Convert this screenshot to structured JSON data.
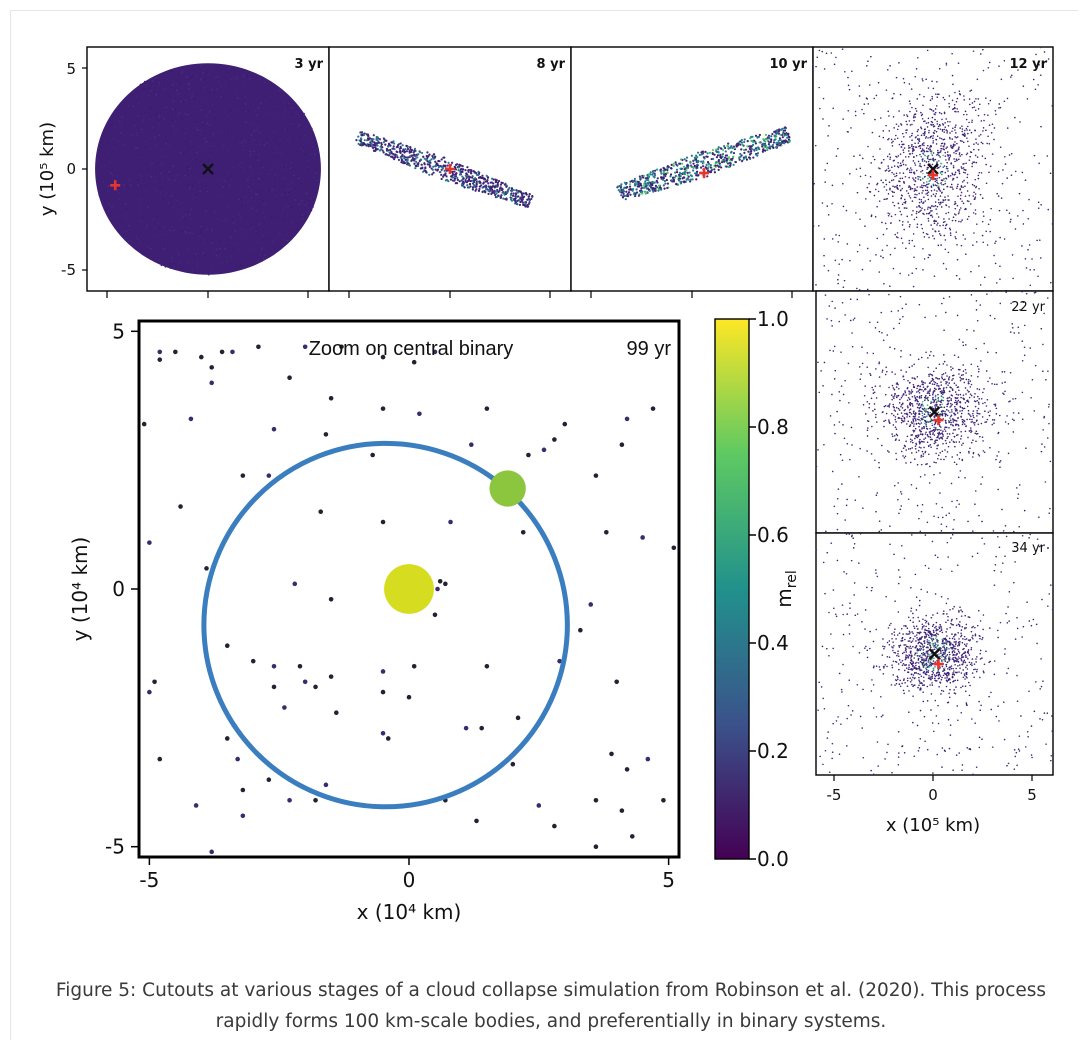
{
  "chart_data": [
    {
      "type": "scatter",
      "panel": "3 yr",
      "time_label": "3 yr",
      "ylabel": "y (10⁵ km)",
      "xlim": [
        -6,
        6
      ],
      "ylim": [
        -6,
        6
      ],
      "yticks": [
        5,
        0,
        -5
      ],
      "yticklabels": [
        "5",
        "0",
        "-5"
      ],
      "shape": "ellipse",
      "cloud": {
        "cx": 0,
        "cy": 0,
        "rx": 5.6,
        "ry": 5.2
      },
      "markers": [
        {
          "kind": "center",
          "symbol": "x",
          "x": 0,
          "y": 0,
          "color": "#111111"
        },
        {
          "kind": "second",
          "symbol": "+",
          "x": -4.6,
          "y": -0.8,
          "color": "#e8352a"
        }
      ]
    },
    {
      "type": "scatter",
      "panel": "8 yr",
      "time_label": "8 yr",
      "xlim": [
        -6,
        6
      ],
      "ylim": [
        -6,
        6
      ],
      "shape": "filament",
      "cloud": {
        "x1": -4.6,
        "y1": 1.6,
        "x2": 4.0,
        "y2": -1.6,
        "width": 0.55
      },
      "markers": [
        {
          "kind": "second",
          "symbol": "+",
          "x": 0,
          "y": 0,
          "color": "#e8352a"
        }
      ]
    },
    {
      "type": "scatter",
      "panel": "10 yr",
      "time_label": "10 yr",
      "xlim": [
        -6,
        6
      ],
      "ylim": [
        -6,
        6
      ],
      "shape": "filament",
      "cloud": {
        "x1": -3.6,
        "y1": -1.2,
        "x2": 4.8,
        "y2": 1.7,
        "width": 0.65
      },
      "markers": [
        {
          "kind": "second",
          "symbol": "+",
          "x": 0.6,
          "y": -0.2,
          "color": "#e8352a"
        }
      ]
    },
    {
      "type": "scatter",
      "panel": "12 yr",
      "time_label": "12 yr",
      "xlim": [
        -6,
        6
      ],
      "ylim": [
        -6,
        6
      ],
      "shape": "diffuse",
      "cloud": {
        "cx": 0,
        "cy": 0,
        "sx": 2.8,
        "sy": 3.3
      },
      "markers": [
        {
          "kind": "center",
          "symbol": "x",
          "x": 0,
          "y": 0,
          "color": "#111111"
        },
        {
          "kind": "second",
          "symbol": "+",
          "x": 0,
          "y": -0.3,
          "color": "#e8352a"
        }
      ]
    },
    {
      "type": "scatter",
      "panel": "22 yr",
      "time_label": "22 yr",
      "xlim": [
        -6,
        6
      ],
      "ylim": [
        -6,
        6
      ],
      "shape": "diffuse",
      "cloud": {
        "cx": 0,
        "cy": 0,
        "sx": 2.6,
        "sy": 2.1
      },
      "markers": [
        {
          "kind": "center",
          "symbol": "x",
          "x": 0,
          "y": 0,
          "color": "#111111"
        },
        {
          "kind": "second",
          "symbol": "+",
          "x": 0.2,
          "y": -0.4,
          "color": "#e8352a"
        }
      ]
    },
    {
      "type": "scatter",
      "panel": "34 yr",
      "time_label": "34 yr",
      "xlabel": "x (10⁵ km)",
      "xlim": [
        -6,
        6
      ],
      "ylim": [
        -6,
        6
      ],
      "xticks": [
        -5,
        0,
        5
      ],
      "xticklabels": [
        "-5",
        "0",
        "5"
      ],
      "shape": "diffuse",
      "cloud": {
        "cx": 0,
        "cy": 0,
        "sx": 2.0,
        "sy": 1.7
      },
      "markers": [
        {
          "kind": "center",
          "symbol": "x",
          "x": 0,
          "y": 0,
          "color": "#111111"
        },
        {
          "kind": "second",
          "symbol": "+",
          "x": 0.2,
          "y": -0.5,
          "color": "#e8352a"
        }
      ]
    },
    {
      "type": "scatter",
      "panel": "zoom",
      "title": "Zoom on central binary",
      "time_label": "99 yr",
      "xlabel": "x (10⁴ km)",
      "ylabel": "y (10⁴ km)",
      "xlim": [
        -5.2,
        5.2
      ],
      "ylim": [
        -5.2,
        5.2
      ],
      "xticks": [
        -5,
        0,
        5
      ],
      "xticklabels": [
        "-5",
        "0",
        "5"
      ],
      "yticks": [
        5,
        0,
        -5
      ],
      "yticklabels": [
        "5",
        "0",
        "-5"
      ],
      "orbit": {
        "cx": -0.45,
        "cy": -0.7,
        "r": 3.5,
        "color": "#3a7ebf"
      },
      "bodies": [
        {
          "x": 0,
          "y": 0,
          "radius": 0.48,
          "m_rel": 1.0,
          "color": "#d6dc1f"
        },
        {
          "x": 1.9,
          "y": 1.95,
          "radius": 0.35,
          "m_rel": 0.75,
          "color": "#8cc63f"
        }
      ],
      "particles": [
        [
          -4.8,
          4.6
        ],
        [
          -4.8,
          4.45
        ],
        [
          -4.5,
          4.6
        ],
        [
          -4.2,
          3.3
        ],
        [
          -4.4,
          1.6
        ],
        [
          -5.1,
          3.2
        ],
        [
          -5.0,
          0.9
        ],
        [
          -4.0,
          4.5
        ],
        [
          -3.8,
          4.3
        ],
        [
          -3.4,
          4.6
        ],
        [
          -3.6,
          4.6
        ],
        [
          -2.9,
          4.7
        ],
        [
          -2.0,
          4.7
        ],
        [
          -1.3,
          4.7
        ],
        [
          -0.5,
          4.5
        ],
        [
          0.5,
          4.6
        ],
        [
          0.1,
          4.4
        ],
        [
          -2.3,
          4.1
        ],
        [
          -3.8,
          4.0
        ],
        [
          -1.5,
          3.7
        ],
        [
          -0.5,
          3.5
        ],
        [
          0.2,
          3.4
        ],
        [
          1.5,
          3.5
        ],
        [
          3.0,
          3.2
        ],
        [
          4.2,
          3.3
        ],
        [
          4.7,
          3.5
        ],
        [
          2.3,
          2.6
        ],
        [
          2.6,
          2.7
        ],
        [
          3.6,
          2.2
        ],
        [
          4.1,
          2.8
        ],
        [
          -2.6,
          3.1
        ],
        [
          -1.6,
          3.0
        ],
        [
          -0.7,
          2.6
        ],
        [
          1.2,
          2.8
        ],
        [
          2.8,
          2.9
        ],
        [
          -3.2,
          2.2
        ],
        [
          -2.7,
          2.2
        ],
        [
          -1.7,
          1.5
        ],
        [
          -0.5,
          1.3
        ],
        [
          0.8,
          1.3
        ],
        [
          2.2,
          1.1
        ],
        [
          3.8,
          1.1
        ],
        [
          4.5,
          1.0
        ],
        [
          5.1,
          0.8
        ],
        [
          -3.9,
          0.4
        ],
        [
          -2.2,
          0.1
        ],
        [
          0.6,
          0.15
        ],
        [
          0.7,
          0.1
        ],
        [
          0.55,
          0.0
        ],
        [
          -1.5,
          -0.2
        ],
        [
          0.5,
          -0.5
        ],
        [
          3.5,
          -0.3
        ],
        [
          3.3,
          -0.8
        ],
        [
          -3.5,
          -1.1
        ],
        [
          -2.6,
          -1.5
        ],
        [
          -2.1,
          -1.5
        ],
        [
          -1.5,
          -1.7
        ],
        [
          -0.5,
          -1.6
        ],
        [
          0.1,
          -1.5
        ],
        [
          1.5,
          -1.5
        ],
        [
          2.9,
          -1.4
        ],
        [
          4.0,
          -1.8
        ],
        [
          -4.9,
          -1.8
        ],
        [
          -5.0,
          -2.0
        ],
        [
          -3.0,
          -1.4
        ],
        [
          -2.6,
          -1.9
        ],
        [
          -2.0,
          -1.8
        ],
        [
          -1.8,
          -1.9
        ],
        [
          -0.5,
          -2.0
        ],
        [
          -2.4,
          -2.3
        ],
        [
          -1.4,
          -2.4
        ],
        [
          0.0,
          -2.1
        ],
        [
          1.1,
          -2.7
        ],
        [
          1.4,
          -2.7
        ],
        [
          2.1,
          -2.5
        ],
        [
          -0.5,
          -2.8
        ],
        [
          -0.4,
          -2.9
        ],
        [
          -3.5,
          -2.9
        ],
        [
          -3.3,
          -3.3
        ],
        [
          -4.8,
          -3.3
        ],
        [
          -2.7,
          -3.7
        ],
        [
          -1.6,
          -3.8
        ],
        [
          2.0,
          -3.4
        ],
        [
          3.9,
          -3.2
        ],
        [
          4.6,
          -3.3
        ],
        [
          4.2,
          -3.5
        ],
        [
          -3.2,
          -3.9
        ],
        [
          -2.3,
          -4.1
        ],
        [
          -1.8,
          -4.1
        ],
        [
          0.7,
          -4.1
        ],
        [
          2.5,
          -4.2
        ],
        [
          3.6,
          -4.1
        ],
        [
          4.9,
          -4.1
        ],
        [
          -3.2,
          -4.4
        ],
        [
          1.3,
          -4.5
        ],
        [
          2.8,
          -4.6
        ],
        [
          -4.1,
          -4.2
        ],
        [
          4.1,
          -4.3
        ],
        [
          3.6,
          -5.0
        ],
        [
          -3.8,
          -5.1
        ],
        [
          4.3,
          -4.8
        ]
      ]
    },
    {
      "type": "heatmap",
      "panel": "colorbar",
      "label": "m",
      "label_sub": "rel",
      "range": [
        0.0,
        1.0
      ],
      "ticks": [
        0.0,
        0.2,
        0.4,
        0.6,
        0.8,
        1.0
      ],
      "ticklabels": [
        "0.0",
        "0.2",
        "0.4",
        "0.6",
        "0.8",
        "1.0"
      ],
      "colormap": [
        "#440154",
        "#3b528b",
        "#21918c",
        "#5ec962",
        "#fde725"
      ]
    }
  ],
  "caption": "Figure 5: Cutouts at various stages of a cloud collapse simulation from Robinson et al. (2020). This process rapidly forms 100 km-scale bodies, and preferentially in binary systems."
}
